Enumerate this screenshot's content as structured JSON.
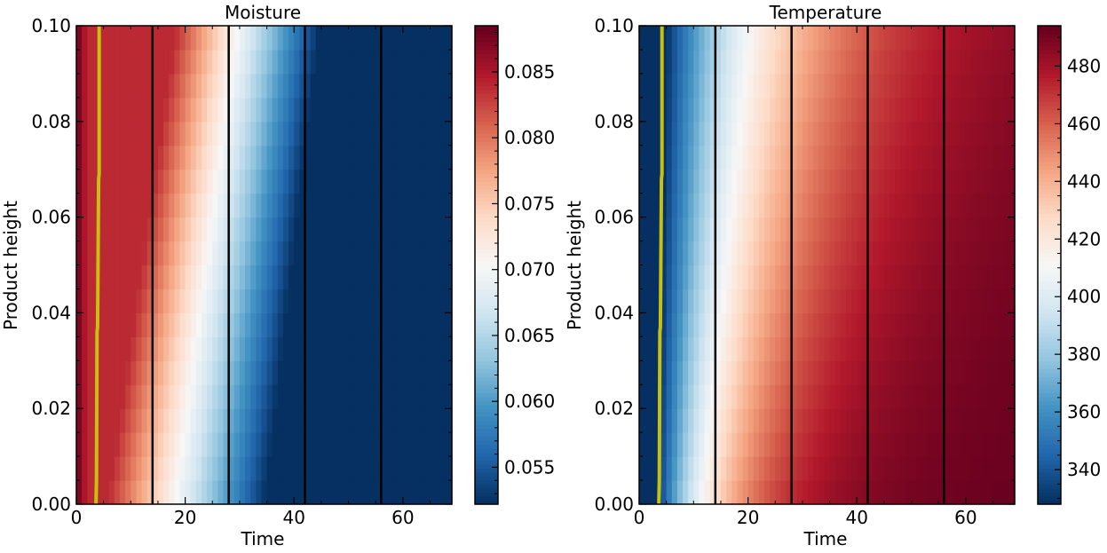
{
  "chart_data": [
    {
      "type": "heatmap",
      "title": "Moisture",
      "xlabel": "Time",
      "ylabel": "Product height",
      "xlim": [
        0,
        69
      ],
      "ylim": [
        0.0,
        0.1
      ],
      "x_ticks": [
        0,
        20,
        40,
        60
      ],
      "y_ticks": [
        0.0,
        0.02,
        0.04,
        0.06,
        0.08,
        0.1
      ],
      "y_tick_labels": [
        "0.00",
        "0.02",
        "0.04",
        "0.06",
        "0.08",
        "0.10"
      ],
      "colorbar": {
        "min": 0.0522,
        "max": 0.0885,
        "ticks": [
          0.055,
          0.06,
          0.065,
          0.07,
          0.075,
          0.08,
          0.085
        ],
        "tick_labels": [
          "0.055",
          "0.060",
          "0.065",
          "0.070",
          "0.075",
          "0.080",
          "0.085"
        ],
        "colormap": "RdBu_r"
      },
      "time_steps": 69,
      "height_steps": 20,
      "profile": {
        "field": "moisture",
        "initial": 0.0885,
        "plateau": 0.084,
        "front_start_bottom": 6,
        "front_start_top": 18,
        "front_speed_bottom": 0.0011,
        "front_speed_top": 0.0012,
        "floor": 0.0522
      },
      "vertical_lines_x": [
        14,
        28,
        42,
        56
      ],
      "vertical_line_color": "#000000",
      "front_line": {
        "color": "#c8c010",
        "points": [
          [
            3.6,
            0.0
          ],
          [
            3.7,
            0.005
          ],
          [
            3.8,
            0.036
          ],
          [
            3.9,
            0.037
          ],
          [
            4.1,
            0.068
          ],
          [
            4.2,
            0.069
          ],
          [
            4.2,
            0.1
          ]
        ]
      }
    },
    {
      "type": "heatmap",
      "title": "Temperature",
      "xlabel": "Time",
      "ylabel": "Product height",
      "xlim": [
        0,
        69
      ],
      "ylim": [
        0.0,
        0.1
      ],
      "x_ticks": [
        0,
        20,
        40,
        60
      ],
      "y_ticks": [
        0.0,
        0.02,
        0.04,
        0.06,
        0.08,
        0.1
      ],
      "y_tick_labels": [
        "0.00",
        "0.02",
        "0.04",
        "0.06",
        "0.08",
        "0.10"
      ],
      "colorbar": {
        "min": 328,
        "max": 494,
        "ticks": [
          340,
          360,
          380,
          400,
          420,
          440,
          460,
          480
        ],
        "tick_labels": [
          "340",
          "360",
          "380",
          "400",
          "420",
          "440",
          "460",
          "480"
        ],
        "colormap": "RdBu_r"
      },
      "time_steps": 69,
      "height_steps": 20,
      "profile": {
        "field": "temperature",
        "initial": 328,
        "final": 494,
        "delay_bottom": 3.5,
        "delay_top": 5,
        "tau_bottom": 12,
        "tau_top": 22
      },
      "vertical_lines_x": [
        14,
        28,
        42,
        56
      ],
      "vertical_line_color": "#000000",
      "front_line": {
        "color": "#c8c010",
        "points": [
          [
            3.6,
            0.0
          ],
          [
            3.7,
            0.005
          ],
          [
            3.8,
            0.036
          ],
          [
            3.9,
            0.037
          ],
          [
            4.1,
            0.068
          ],
          [
            4.2,
            0.069
          ],
          [
            4.2,
            0.1
          ]
        ]
      }
    }
  ]
}
